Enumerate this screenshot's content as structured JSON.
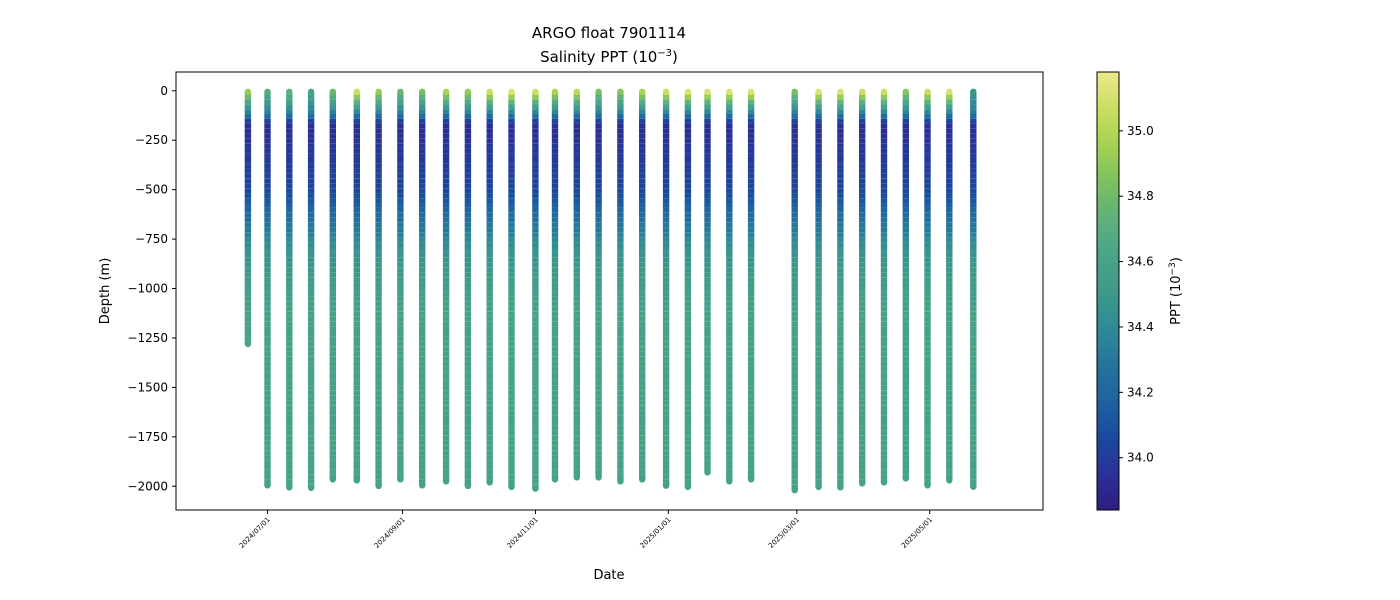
{
  "chart_data": {
    "type": "scatter",
    "title": "ARGO float 7901114",
    "subtitle": "Salinity PPT (10",
    "subtitle_exp": "−3",
    "subtitle_end": ")",
    "xlabel": "Date",
    "ylabel": "Depth (m)",
    "colorbar_label": "PPT (10",
    "colorbar_label_exp": "−3",
    "colorbar_label_end": ")",
    "xlim": [
      "2024-05-20",
      "2025-06-22"
    ],
    "ylim": [
      -2120,
      95
    ],
    "clim": [
      33.84,
      35.18
    ],
    "grid": false,
    "colormap": [
      "#2e1e80",
      "#2a3198",
      "#1a4a9e",
      "#1e63a0",
      "#25759b",
      "#2f8a98",
      "#3f9a88",
      "#4aa58a",
      "#5fb07a",
      "#7cc160",
      "#a6d152",
      "#cbde62",
      "#ede88a"
    ],
    "x_ticks": [
      {
        "date": "2024-07-01",
        "label": "2024/07/01"
      },
      {
        "date": "2024-09-01",
        "label": "2024/09/01"
      },
      {
        "date": "2024-11-01",
        "label": "2024/11/01"
      },
      {
        "date": "2025-01-01",
        "label": "2025/01/01"
      },
      {
        "date": "2025-03-01",
        "label": "2025/03/01"
      },
      {
        "date": "2025-05-01",
        "label": "2025/05/01"
      }
    ],
    "y_ticks": [
      {
        "value": 0,
        "label": "0"
      },
      {
        "value": -250,
        "label": "−250"
      },
      {
        "value": -500,
        "label": "−500"
      },
      {
        "value": -750,
        "label": "−750"
      },
      {
        "value": -1000,
        "label": "−1000"
      },
      {
        "value": -1250,
        "label": "−1250"
      },
      {
        "value": -1500,
        "label": "−1500"
      },
      {
        "value": -1750,
        "label": "−1750"
      },
      {
        "value": -2000,
        "label": "−2000"
      }
    ],
    "colorbar_ticks": [
      {
        "value": 34.0,
        "label": "34.0"
      },
      {
        "value": 34.2,
        "label": "34.2"
      },
      {
        "value": 34.4,
        "label": "34.4"
      },
      {
        "value": 34.6,
        "label": "34.6"
      },
      {
        "value": 34.8,
        "label": "34.8"
      },
      {
        "value": 35.0,
        "label": "35.0"
      }
    ],
    "profiles": [
      {
        "date": "2024-06-22",
        "max_depth": -1280,
        "surface_salinity": 34.95
      },
      {
        "date": "2024-07-01",
        "max_depth": -1995,
        "surface_salinity": 34.7
      },
      {
        "date": "2024-07-11",
        "max_depth": -2005,
        "surface_salinity": 34.75
      },
      {
        "date": "2024-07-21",
        "max_depth": -2008,
        "surface_salinity": 34.6
      },
      {
        "date": "2024-07-31",
        "max_depth": -1965,
        "surface_salinity": 34.8
      },
      {
        "date": "2024-08-11",
        "max_depth": -1970,
        "surface_salinity": 35.1
      },
      {
        "date": "2024-08-21",
        "max_depth": -1998,
        "surface_salinity": 34.95
      },
      {
        "date": "2024-08-31",
        "max_depth": -1965,
        "surface_salinity": 34.8
      },
      {
        "date": "2024-09-10",
        "max_depth": -1995,
        "surface_salinity": 34.85
      },
      {
        "date": "2024-09-21",
        "max_depth": -1975,
        "surface_salinity": 35.0
      },
      {
        "date": "2024-10-01",
        "max_depth": -1998,
        "surface_salinity": 34.95
      },
      {
        "date": "2024-10-11",
        "max_depth": -1980,
        "surface_salinity": 35.1
      },
      {
        "date": "2024-10-21",
        "max_depth": -2003,
        "surface_salinity": 35.15
      },
      {
        "date": "2024-11-01",
        "max_depth": -2012,
        "surface_salinity": 35.1
      },
      {
        "date": "2024-11-10",
        "max_depth": -1965,
        "surface_salinity": 35.0
      },
      {
        "date": "2024-11-20",
        "max_depth": -1955,
        "surface_salinity": 35.05
      },
      {
        "date": "2024-11-30",
        "max_depth": -1955,
        "surface_salinity": 34.85
      },
      {
        "date": "2024-12-10",
        "max_depth": -1975,
        "surface_salinity": 34.9
      },
      {
        "date": "2024-12-20",
        "max_depth": -1965,
        "surface_salinity": 35.0
      },
      {
        "date": "2024-12-31",
        "max_depth": -1997,
        "surface_salinity": 35.1
      },
      {
        "date": "2025-01-10",
        "max_depth": -2003,
        "surface_salinity": 35.15
      },
      {
        "date": "2025-01-19",
        "max_depth": -1930,
        "surface_salinity": 35.15
      },
      {
        "date": "2025-01-29",
        "max_depth": -1975,
        "surface_salinity": 35.15
      },
      {
        "date": "2025-02-08",
        "max_depth": -1965,
        "surface_salinity": 35.15
      },
      {
        "date": "2025-02-28",
        "max_depth": -2020,
        "surface_salinity": 34.85
      },
      {
        "date": "2025-03-11",
        "max_depth": -2003,
        "surface_salinity": 35.15
      },
      {
        "date": "2025-03-21",
        "max_depth": -2005,
        "surface_salinity": 35.15
      },
      {
        "date": "2025-03-31",
        "max_depth": -1985,
        "surface_salinity": 35.1
      },
      {
        "date": "2025-04-10",
        "max_depth": -1980,
        "surface_salinity": 35.1
      },
      {
        "date": "2025-04-20",
        "max_depth": -1960,
        "surface_salinity": 34.9
      },
      {
        "date": "2025-04-30",
        "max_depth": -1995,
        "surface_salinity": 35.1
      },
      {
        "date": "2025-05-10",
        "max_depth": -1970,
        "surface_salinity": 35.15
      },
      {
        "date": "2025-05-21",
        "max_depth": -2002,
        "surface_salinity": 34.5
      }
    ]
  }
}
